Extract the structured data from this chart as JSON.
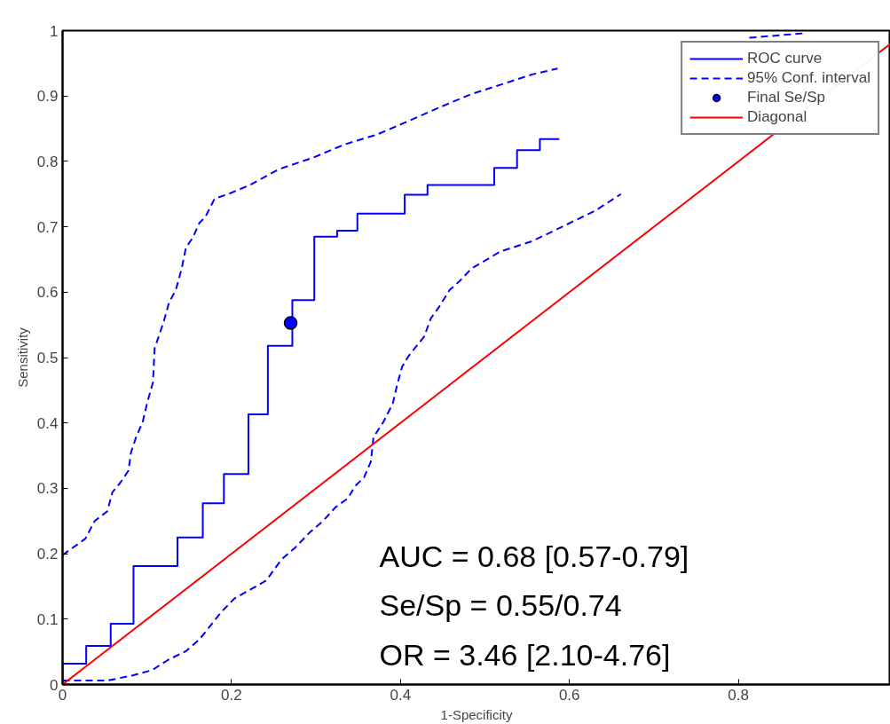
{
  "chart_data": {
    "type": "line",
    "xlabel": "1-Specificity",
    "ylabel": "Sensitivity",
    "xlim": [
      0,
      0.98
    ],
    "ylim": [
      0,
      1
    ],
    "xticks": [
      0,
      0.2,
      0.4,
      0.6,
      0.8
    ],
    "yticks": [
      0,
      0.1,
      0.2,
      0.3,
      0.4,
      0.5,
      0.6,
      0.7,
      0.8,
      0.9,
      1
    ],
    "grid": false,
    "legend": "top right",
    "series": [
      {
        "name": "ROC curve",
        "type": "step",
        "color": "#0000ff",
        "line_style": "solid",
        "x": [
          0,
          0,
          0.028,
          0.028,
          0.057,
          0.057,
          0.084,
          0.084,
          0.136,
          0.136,
          0.166,
          0.166,
          0.191,
          0.191,
          0.22,
          0.22,
          0.243,
          0.243,
          0.272,
          0.272,
          0.298,
          0.298,
          0.325,
          0.325,
          0.349,
          0.349,
          0.405,
          0.405,
          0.432,
          0.432,
          0.511,
          0.511,
          0.538,
          0.538,
          0.565,
          0.565,
          0.588
        ],
        "values": [
          0,
          0.032,
          0.032,
          0.059,
          0.059,
          0.093,
          0.093,
          0.181,
          0.181,
          0.225,
          0.225,
          0.277,
          0.277,
          0.322,
          0.322,
          0.413,
          0.413,
          0.518,
          0.518,
          0.588,
          0.588,
          0.685,
          0.685,
          0.694,
          0.694,
          0.72,
          0.72,
          0.749,
          0.749,
          0.764,
          0.764,
          0.79,
          0.79,
          0.817,
          0.817,
          0.834,
          0.834
        ]
      },
      {
        "name": "95% Conf. interval",
        "color": "#0000ff",
        "line_style": "dashed",
        "x": [
          0,
          0.027,
          0.038,
          0.053,
          0.059,
          0.068,
          0.078,
          0.081,
          0.087,
          0.095,
          0.1,
          0.107,
          0.109,
          0.12,
          0.126,
          0.134,
          0.141,
          0.146,
          0.154,
          0.162,
          0.169,
          0.18,
          0.196,
          0.222,
          0.256,
          0.297,
          0.334,
          0.372,
          0.41,
          0.447,
          0.484,
          0.518,
          0.556,
          0.586,
          0.7,
          0.813,
          0.878
        ],
        "values": [
          0.198,
          0.223,
          0.25,
          0.265,
          0.294,
          0.308,
          0.327,
          0.355,
          0.378,
          0.402,
          0.43,
          0.462,
          0.514,
          0.556,
          0.584,
          0.603,
          0.636,
          0.668,
          0.683,
          0.706,
          0.715,
          0.743,
          0.75,
          0.764,
          0.788,
          0.806,
          0.826,
          0.841,
          0.862,
          0.883,
          0.903,
          0.917,
          0.933,
          0.942,
          null,
          0.989,
          0.996
        ]
      },
      {
        "color": "#0000ff",
        "line_style": "dashed",
        "x": [
          0,
          0.053,
          0.083,
          0.106,
          0.124,
          0.146,
          0.162,
          0.177,
          0.188,
          0.203,
          0.222,
          0.241,
          0.259,
          0.275,
          0.293,
          0.309,
          0.323,
          0.338,
          0.346,
          0.357,
          0.365,
          0.368,
          0.38,
          0.391,
          0.396,
          0.402,
          0.41,
          0.428,
          0.436,
          0.447,
          0.458,
          0.47,
          0.484,
          0.518,
          0.556,
          0.593,
          0.631,
          0.661
        ],
        "values": [
          0.006,
          0.006,
          0.014,
          0.022,
          0.037,
          0.051,
          0.069,
          0.093,
          0.111,
          0.131,
          0.145,
          0.159,
          0.191,
          0.209,
          0.233,
          0.251,
          0.271,
          0.285,
          0.303,
          0.317,
          0.341,
          0.378,
          0.402,
          0.43,
          0.458,
          0.486,
          0.503,
          0.532,
          0.56,
          0.58,
          0.603,
          0.617,
          0.636,
          0.662,
          0.678,
          0.701,
          0.725,
          0.75
        ]
      },
      {
        "name": "Final Se/Sp",
        "type": "scatter",
        "color": "#0000ff",
        "marker": "circle",
        "x": [
          0.27
        ],
        "values": [
          0.553
        ]
      },
      {
        "name": "Diagonal",
        "color": "#ff0000",
        "line_style": "solid",
        "x": [
          0,
          0.98
        ],
        "values": [
          0,
          0.98
        ]
      }
    ],
    "annotations": [
      "AUC = 0.68 [0.57-0.79]",
      "Se/Sp = 0.55/0.74",
      "OR = 3.46 [2.10-4.76]"
    ]
  }
}
